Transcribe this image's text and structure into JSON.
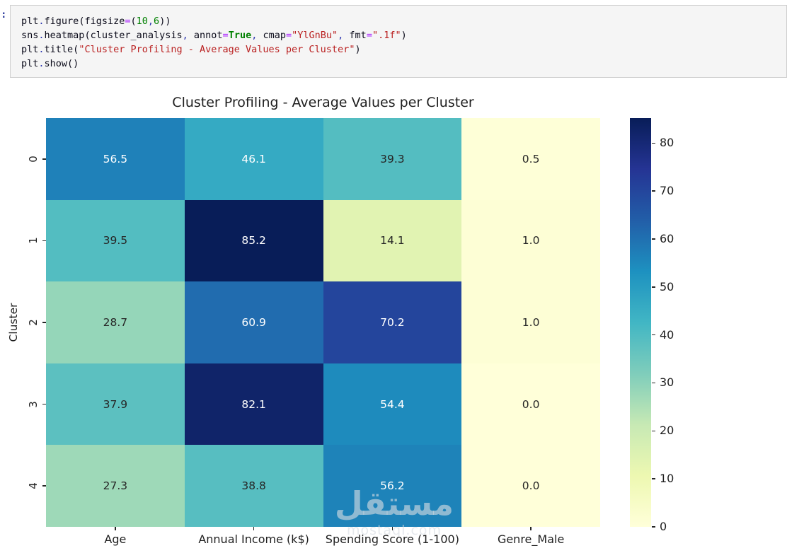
{
  "notebook_cell": {
    "prompt": ":",
    "code_lines": [
      {
        "tokens": [
          {
            "t": "plt",
            "c": "n"
          },
          {
            "t": ".",
            "c": "p"
          },
          {
            "t": "figure",
            "c": "n"
          },
          {
            "t": "(",
            "c": "n"
          },
          {
            "t": "figsize",
            "c": "n"
          },
          {
            "t": "=",
            "c": "o"
          },
          {
            "t": "(",
            "c": "n"
          },
          {
            "t": "10",
            "c": "num"
          },
          {
            "t": ",",
            "c": "p"
          },
          {
            "t": "6",
            "c": "num"
          },
          {
            "t": "))",
            "c": "n"
          }
        ]
      },
      {
        "tokens": [
          {
            "t": "sns",
            "c": "n"
          },
          {
            "t": ".",
            "c": "p"
          },
          {
            "t": "heatmap",
            "c": "n"
          },
          {
            "t": "(",
            "c": "n"
          },
          {
            "t": "cluster_analysis",
            "c": "n"
          },
          {
            "t": ",",
            "c": "p"
          },
          {
            "t": " annot",
            "c": "n"
          },
          {
            "t": "=",
            "c": "o"
          },
          {
            "t": "True",
            "c": "kw"
          },
          {
            "t": ",",
            "c": "p"
          },
          {
            "t": " cmap",
            "c": "n"
          },
          {
            "t": "=",
            "c": "o"
          },
          {
            "t": "\"YlGnBu\"",
            "c": "s"
          },
          {
            "t": ",",
            "c": "p"
          },
          {
            "t": " fmt",
            "c": "n"
          },
          {
            "t": "=",
            "c": "o"
          },
          {
            "t": "\".1f\"",
            "c": "s"
          },
          {
            "t": ")",
            "c": "n"
          }
        ]
      },
      {
        "tokens": [
          {
            "t": "plt",
            "c": "n"
          },
          {
            "t": ".",
            "c": "p"
          },
          {
            "t": "title",
            "c": "n"
          },
          {
            "t": "(",
            "c": "n"
          },
          {
            "t": "\"Cluster Profiling - Average Values per Cluster\"",
            "c": "s"
          },
          {
            "t": ")",
            "c": "n"
          }
        ]
      },
      {
        "tokens": [
          {
            "t": "plt",
            "c": "n"
          },
          {
            "t": ".",
            "c": "p"
          },
          {
            "t": "show",
            "c": "n"
          },
          {
            "t": "()",
            "c": "n"
          }
        ]
      }
    ]
  },
  "chart_data": {
    "type": "heatmap",
    "title": "Cluster Profiling - Average Values per Cluster",
    "xlabel": "",
    "ylabel": "Cluster",
    "rows": [
      "0",
      "1",
      "2",
      "3",
      "4"
    ],
    "columns": [
      "Age",
      "Annual Income (k$)",
      "Spending Score (1-100)",
      "Genre_Male"
    ],
    "values": [
      [
        56.5,
        46.1,
        39.3,
        0.5
      ],
      [
        39.5,
        85.2,
        14.1,
        1.0
      ],
      [
        28.7,
        60.9,
        70.2,
        1.0
      ],
      [
        37.9,
        82.1,
        54.4,
        0.0
      ],
      [
        27.3,
        38.8,
        56.2,
        0.0
      ]
    ],
    "annot": true,
    "annot_format": ".1f",
    "cmap": "YlGnBu",
    "vmin": 0,
    "vmax": 85.2,
    "colorbar_ticks": [
      0,
      10,
      20,
      30,
      40,
      50,
      60,
      70,
      80
    ],
    "colormap_stops": [
      "#ffffd9",
      "#edf8b1",
      "#c7e9b4",
      "#7fcdbb",
      "#41b6c4",
      "#1d91c0",
      "#225ea8",
      "#253494",
      "#081d58"
    ],
    "annotation_color_dark": "#262626",
    "annotation_color_light": "#ffffff",
    "legend_position": "right-colorbar",
    "grid": false
  },
  "watermark": {
    "text_ar": "مستقل",
    "text_en": "mostaql.com"
  },
  "colors": {
    "cell_background": "#f5f5f5",
    "cell_border": "#cfcfcf",
    "axis_text": "#1f1f1f"
  }
}
